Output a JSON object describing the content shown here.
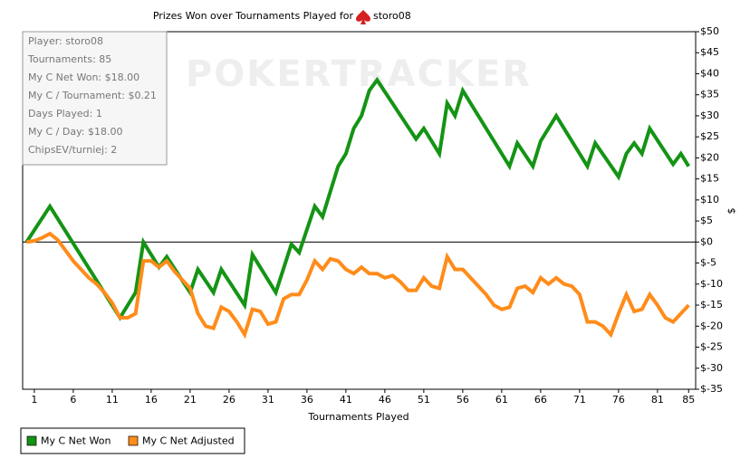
{
  "chart_data": {
    "type": "line",
    "title": "Prizes Won over Tournaments Played for",
    "title_player": "storo08",
    "watermark": "POKERTRACKER",
    "x_label": "Tournaments Played",
    "y_label": "$",
    "info_box": [
      "Player: storo08",
      "Tournaments: 85",
      "My C Net Won: $18.00",
      "My C / Tournament: $0.21",
      "Days Played: 1",
      "My C / Day: $18.00",
      "ChipsEV/turniej: 2"
    ],
    "xlim": [
      -0.5,
      85.9
    ],
    "xticks": [
      1,
      6,
      11,
      16,
      21,
      26,
      31,
      36,
      41,
      46,
      51,
      56,
      61,
      66,
      71,
      76,
      81,
      85
    ],
    "ylim": [
      -35,
      50
    ],
    "yticks": [
      {
        "value": -35,
        "label": "$-35"
      },
      {
        "value": -30,
        "label": "$-30"
      },
      {
        "value": -25,
        "label": "$-25"
      },
      {
        "value": -20,
        "label": "$-20"
      },
      {
        "value": -15,
        "label": "$-15"
      },
      {
        "value": -10,
        "label": "$-10"
      },
      {
        "value": -5,
        "label": "$-5"
      },
      {
        "value": 0,
        "label": "$0"
      },
      {
        "value": 5,
        "label": "$5"
      },
      {
        "value": 10,
        "label": "$10"
      },
      {
        "value": 15,
        "label": "$15"
      },
      {
        "value": 20,
        "label": "$20"
      },
      {
        "value": 25,
        "label": "$25"
      },
      {
        "value": 30,
        "label": "$30"
      },
      {
        "value": 35,
        "label": "$35"
      },
      {
        "value": 40,
        "label": "$40"
      },
      {
        "value": 45,
        "label": "$45"
      },
      {
        "value": 50,
        "label": "$50"
      }
    ],
    "series": [
      {
        "name": "My C Net Won",
        "color": "#149414",
        "x": [
          0,
          3,
          12,
          14,
          15,
          17,
          18,
          21,
          22,
          24,
          25,
          28,
          29,
          32,
          34,
          35,
          37,
          38,
          40,
          41,
          42,
          43,
          44,
          45,
          50,
          51,
          53,
          54,
          55,
          56,
          62,
          63,
          65,
          66,
          68,
          72,
          73,
          76,
          77,
          78,
          79,
          80,
          83,
          84,
          85
        ],
        "values": [
          0,
          8.5,
          -18,
          -12,
          0,
          -6,
          -3.5,
          -12,
          -6.5,
          -12,
          -6.5,
          -15,
          -3,
          -12,
          -0.5,
          -2.5,
          8.5,
          6,
          18,
          21,
          27,
          30,
          36,
          38.5,
          24.5,
          27,
          21,
          33,
          30,
          36,
          18,
          23.5,
          18,
          24,
          30,
          18,
          23.5,
          15.5,
          21,
          23.5,
          21,
          27,
          18.5,
          21,
          18
        ]
      },
      {
        "name": "My C Net Adjusted",
        "color": "#ff8c1a",
        "x": [
          0,
          1,
          2,
          3,
          4,
          5,
          6,
          7,
          8,
          9,
          10,
          11,
          12,
          13,
          14,
          15,
          16,
          17,
          18,
          19,
          20,
          21,
          22,
          23,
          24,
          25,
          26,
          27,
          28,
          29,
          30,
          31,
          32,
          33,
          34,
          35,
          36,
          37,
          38,
          39,
          40,
          41,
          42,
          43,
          44,
          45,
          46,
          47,
          48,
          49,
          50,
          51,
          52,
          53,
          54,
          55,
          56,
          57,
          58,
          59,
          60,
          61,
          62,
          63,
          64,
          65,
          66,
          67,
          68,
          69,
          70,
          71,
          72,
          73,
          74,
          75,
          76,
          77,
          78,
          79,
          80,
          81,
          82,
          83,
          84,
          85
        ],
        "values": [
          0,
          0.3,
          1,
          2,
          0.5,
          -2,
          -4.5,
          -6.5,
          -8.5,
          -10,
          -12,
          -14.5,
          -18,
          -18,
          -17,
          -4.5,
          -4.5,
          -6,
          -4.5,
          -7,
          -9,
          -11,
          -17,
          -20,
          -20.5,
          -15.5,
          -16.5,
          -19,
          -22,
          -16,
          -16.5,
          -19.5,
          -19,
          -13.5,
          -12.5,
          -12.5,
          -9,
          -4.5,
          -6.5,
          -4,
          -4.5,
          -6.5,
          -7.5,
          -6,
          -7.5,
          -7.5,
          -8.5,
          -8,
          -9.5,
          -11.5,
          -11.5,
          -8.5,
          -10.5,
          -11,
          -3.5,
          -6.5,
          -6.5,
          -8.5,
          -10.5,
          -12.5,
          -15,
          -16,
          -15.5,
          -11,
          -10.5,
          -12,
          -8.5,
          -10,
          -8.5,
          -10,
          -10.5,
          -12.5,
          -19,
          -19,
          -20,
          -22,
          -17,
          -12.5,
          -16.5,
          -16,
          -12.5,
          -15,
          -18,
          -19,
          -17,
          -15
        ]
      }
    ]
  }
}
